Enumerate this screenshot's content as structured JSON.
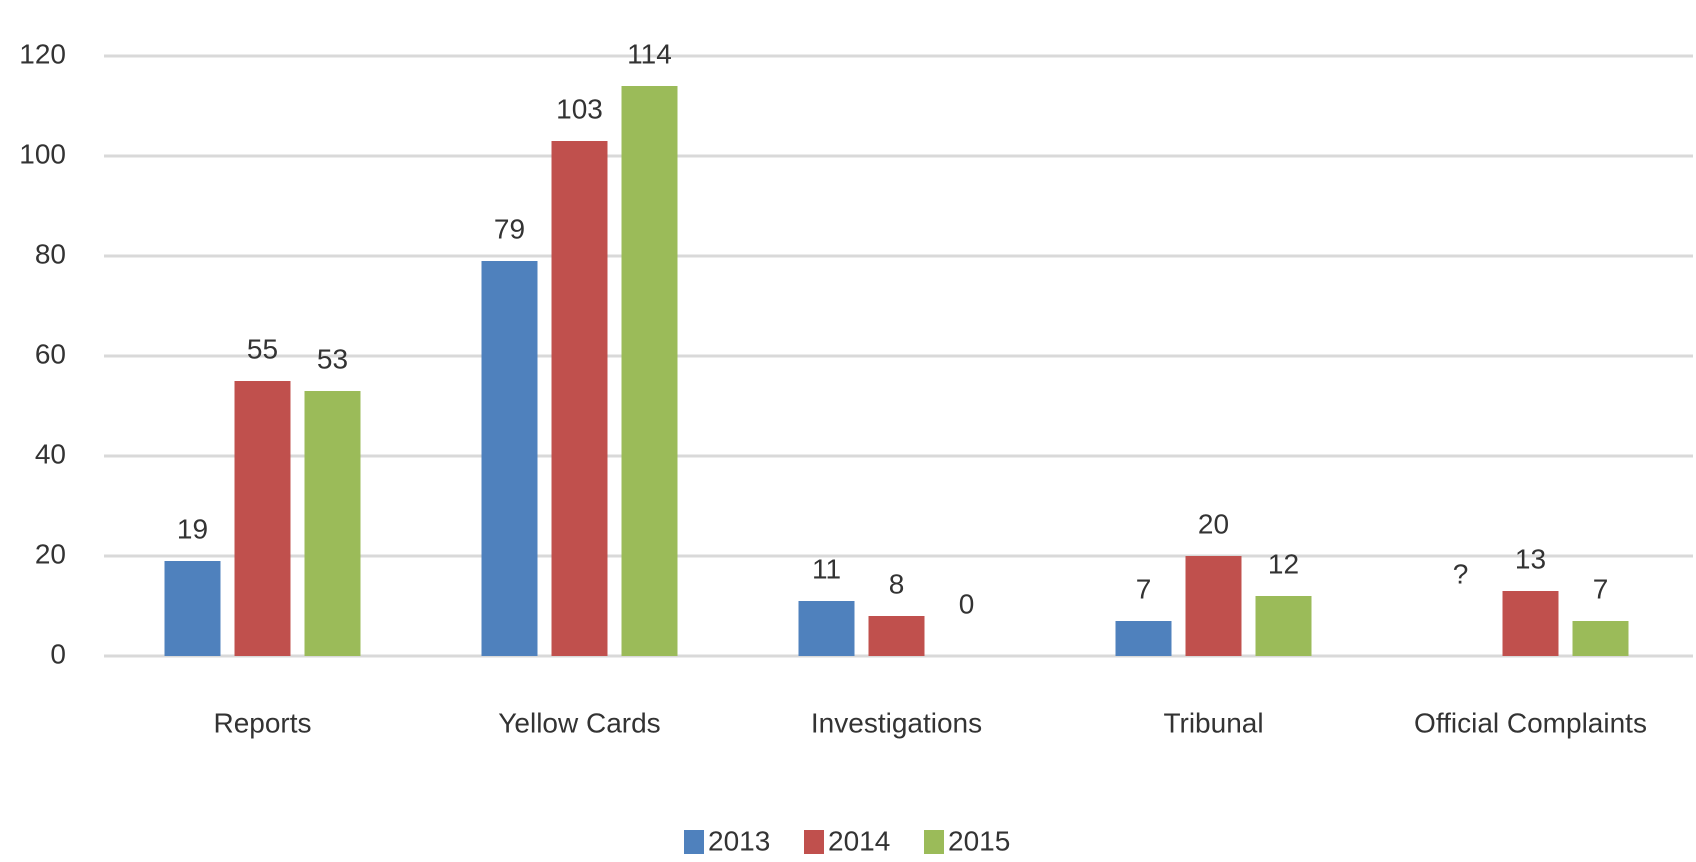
{
  "chart_data": {
    "type": "bar",
    "categories": [
      "Reports",
      "Yellow Cards",
      "Investigations",
      "Tribunal",
      "Official Complaints"
    ],
    "series": [
      {
        "name": "2013",
        "color": "#4f81bd",
        "values": [
          19,
          79,
          11,
          7,
          null
        ],
        "value_labels": [
          "19",
          "79",
          "11",
          "7",
          "?"
        ]
      },
      {
        "name": "2014",
        "color": "#c0504d",
        "values": [
          55,
          103,
          8,
          20,
          13
        ]
      },
      {
        "name": "2015",
        "color": "#9bbb59",
        "values": [
          53,
          114,
          0,
          12,
          7
        ]
      }
    ],
    "ylim": [
      0,
      120
    ],
    "yticks": [
      0,
      20,
      40,
      60,
      80,
      100,
      120
    ],
    "grid": true,
    "legend": "bottom"
  }
}
